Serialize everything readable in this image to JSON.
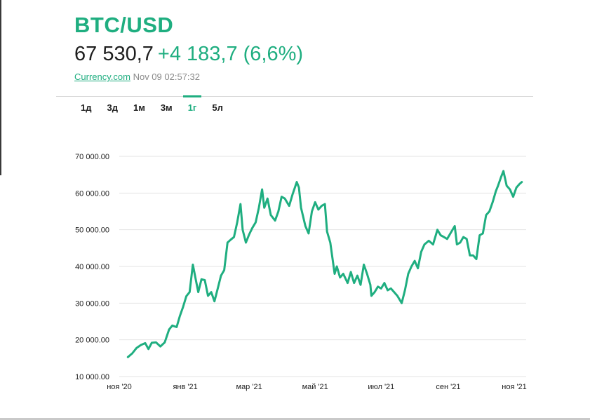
{
  "header": {
    "title": "BTC/USD",
    "price": "67 530,7",
    "change": "+4 183,7 (6,6%)",
    "source_link": "Currency.com",
    "timestamp": "Nov 09 02:57:32"
  },
  "range_tabs": [
    {
      "label": "1д",
      "active": false
    },
    {
      "label": "3д",
      "active": false
    },
    {
      "label": "1м",
      "active": false
    },
    {
      "label": "3м",
      "active": false
    },
    {
      "label": "1г",
      "active": true
    },
    {
      "label": "5л",
      "active": false
    }
  ],
  "colors": {
    "accent": "#1fae80",
    "line": "#1fae80",
    "grid": "#e3e3e3",
    "text": "#1e1e1e"
  },
  "chart_data": {
    "type": "line",
    "title": "",
    "xlabel": "",
    "ylabel": "",
    "grid": true,
    "ylim": [
      10000,
      70000
    ],
    "y_ticks": [
      70000,
      60000,
      50000,
      40000,
      30000,
      20000,
      10000
    ],
    "y_tick_labels": [
      "70 000.00",
      "60 000.00",
      "50 000.00",
      "40 000.00",
      "30 000.00",
      "20 000.00",
      "10 000.00"
    ],
    "x_ticks": [
      "ноя '20",
      "янв '21",
      "мар '21",
      "май '21",
      "июл '21",
      "сен '21",
      "ноя '21"
    ],
    "xlim": [
      "2020-11-01",
      "2021-11-12"
    ],
    "x_tick_dates": [
      "2020-11-01",
      "2021-01-01",
      "2021-03-01",
      "2021-05-01",
      "2021-07-01",
      "2021-09-01",
      "2021-11-01"
    ],
    "series": [
      {
        "x": [
          "2020-11-09",
          "2020-11-13",
          "2020-11-17",
          "2020-11-21",
          "2020-11-25",
          "2020-11-28",
          "2020-12-01",
          "2020-12-05",
          "2020-12-09",
          "2020-12-13",
          "2020-12-17",
          "2020-12-20",
          "2020-12-24",
          "2020-12-27",
          "2020-12-30",
          "2021-01-02",
          "2021-01-05",
          "2021-01-08",
          "2021-01-11",
          "2021-01-13",
          "2021-01-16",
          "2021-01-19",
          "2021-01-22",
          "2021-01-25",
          "2021-01-28",
          "2021-01-31",
          "2021-02-03",
          "2021-02-06",
          "2021-02-09",
          "2021-02-12",
          "2021-02-15",
          "2021-02-18",
          "2021-02-21",
          "2021-02-23",
          "2021-02-26",
          "2021-03-01",
          "2021-03-04",
          "2021-03-07",
          "2021-03-10",
          "2021-03-13",
          "2021-03-15",
          "2021-03-18",
          "2021-03-21",
          "2021-03-25",
          "2021-03-28",
          "2021-03-31",
          "2021-04-03",
          "2021-04-07",
          "2021-04-10",
          "2021-04-14",
          "2021-04-16",
          "2021-04-18",
          "2021-04-22",
          "2021-04-25",
          "2021-04-28",
          "2021-05-01",
          "2021-05-04",
          "2021-05-07",
          "2021-05-10",
          "2021-05-12",
          "2021-05-15",
          "2021-05-19",
          "2021-05-21",
          "2021-05-24",
          "2021-05-27",
          "2021-05-31",
          "2021-06-03",
          "2021-06-06",
          "2021-06-09",
          "2021-06-12",
          "2021-06-15",
          "2021-06-18",
          "2021-06-21",
          "2021-06-22",
          "2021-06-25",
          "2021-06-28",
          "2021-07-01",
          "2021-07-04",
          "2021-07-07",
          "2021-07-10",
          "2021-07-13",
          "2021-07-16",
          "2021-07-20",
          "2021-07-23",
          "2021-07-26",
          "2021-07-29",
          "2021-08-01",
          "2021-08-04",
          "2021-08-07",
          "2021-08-10",
          "2021-08-14",
          "2021-08-18",
          "2021-08-22",
          "2021-08-25",
          "2021-08-28",
          "2021-08-31",
          "2021-09-03",
          "2021-09-07",
          "2021-09-09",
          "2021-09-12",
          "2021-09-15",
          "2021-09-18",
          "2021-09-21",
          "2021-09-24",
          "2021-09-27",
          "2021-09-30",
          "2021-10-03",
          "2021-10-06",
          "2021-10-09",
          "2021-10-12",
          "2021-10-15",
          "2021-10-17",
          "2021-10-20",
          "2021-10-22",
          "2021-10-25",
          "2021-10-28",
          "2021-10-31",
          "2021-11-03",
          "2021-11-06",
          "2021-11-08"
        ],
        "y": [
          15300,
          16300,
          17800,
          18600,
          19100,
          17500,
          19200,
          19300,
          18200,
          19300,
          22800,
          23900,
          23500,
          26500,
          29000,
          31900,
          33000,
          40500,
          36000,
          33000,
          36500,
          36300,
          32000,
          33000,
          30500,
          34000,
          37500,
          39000,
          46500,
          47300,
          48000,
          52000,
          57000,
          50000,
          46500,
          48700,
          50500,
          52000,
          56000,
          61000,
          56000,
          58500,
          54000,
          52500,
          55000,
          59000,
          58500,
          56500,
          59500,
          63000,
          61500,
          56000,
          51000,
          49000,
          55000,
          57500,
          55500,
          56500,
          57000,
          49500,
          46500,
          38000,
          40000,
          37000,
          38000,
          35500,
          38500,
          35500,
          37500,
          35000,
          40500,
          38000,
          35000,
          32000,
          33000,
          34500,
          34000,
          35500,
          33500,
          34000,
          33000,
          32000,
          30000,
          33500,
          38000,
          40000,
          41500,
          39500,
          44000,
          46000,
          47000,
          46000,
          50000,
          48500,
          48000,
          47500,
          49000,
          51000,
          46000,
          46500,
          48000,
          47500,
          43000,
          43000,
          42000,
          48500,
          49000,
          54000,
          55000,
          57500,
          60500,
          62000,
          64500,
          66000,
          62000,
          61000,
          59000,
          61500,
          62500,
          63000
        ],
        "name": ""
      }
    ]
  }
}
